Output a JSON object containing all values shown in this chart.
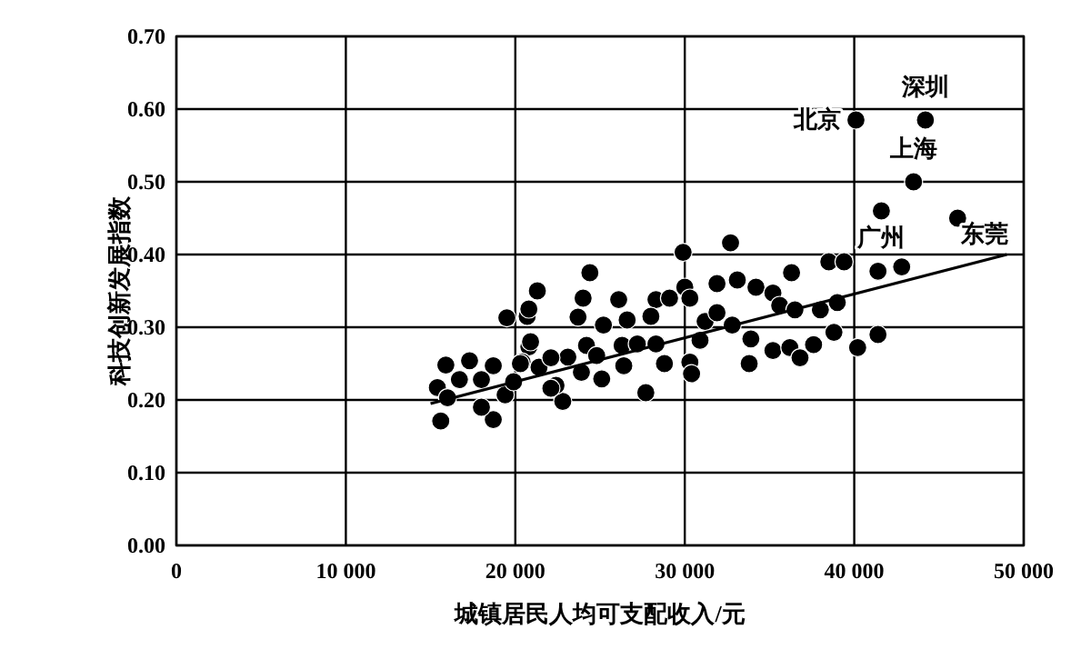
{
  "chart_data": {
    "type": "scatter",
    "xlabel": "城镇居民人均可支配收入/元",
    "ylabel": "科技创新发展指数",
    "xlim": [
      0,
      50000
    ],
    "ylim": [
      0,
      0.7
    ],
    "xticks": [
      0,
      {
        "value": 10000,
        "label": "10 000"
      },
      {
        "value": 20000,
        "label": "20 000"
      },
      {
        "value": 30000,
        "label": "30 000"
      },
      {
        "value": 40000,
        "label": "40 000"
      },
      {
        "value": 50000,
        "label": "50 000"
      }
    ],
    "yticks": [
      {
        "value": 0,
        "label": "0.00"
      },
      {
        "value": 0.1,
        "label": "0.10"
      },
      {
        "value": 0.2,
        "label": "0.20"
      },
      {
        "value": 0.3,
        "label": "0.30"
      },
      {
        "value": 0.4,
        "label": "0.40"
      },
      {
        "value": 0.5,
        "label": "0.50"
      },
      {
        "value": 0.6,
        "label": "0.60"
      },
      {
        "value": 0.7,
        "label": "0.70"
      }
    ],
    "grid": true,
    "marker": "circle",
    "series": [
      {
        "color": "#000000",
        "x": [
          40100,
          44200,
          43500,
          41600,
          46100,
          29900,
          32700,
          24400,
          21300,
          24000,
          26100,
          28300,
          29100,
          30000,
          30300,
          31900,
          33100,
          34200,
          35200,
          36300,
          35600,
          36500,
          38000,
          39000,
          38500,
          39400,
          41400,
          42800,
          20700,
          23700,
          26600,
          28000,
          25200,
          31200,
          31900,
          32800,
          33900,
          35200,
          36200,
          36800,
          37600,
          38800,
          40200,
          41400,
          33800,
          30900,
          30300,
          30400,
          20800,
          24200,
          26300,
          27200,
          28300,
          24800,
          26400,
          28800,
          27700,
          22800,
          20400,
          23100,
          23900,
          25100,
          22400,
          19500,
          20800,
          20900,
          15900,
          17300,
          18700,
          15400,
          16700,
          18000,
          16000,
          15600,
          18700,
          18000,
          19400,
          20300,
          21400,
          22100,
          19900,
          22100
        ],
        "values": [
          0.585,
          0.585,
          0.5,
          0.46,
          0.45,
          0.403,
          0.416,
          0.375,
          0.35,
          0.34,
          0.338,
          0.338,
          0.34,
          0.355,
          0.34,
          0.36,
          0.365,
          0.355,
          0.347,
          0.375,
          0.33,
          0.324,
          0.324,
          0.334,
          0.39,
          0.39,
          0.377,
          0.383,
          0.315,
          0.314,
          0.31,
          0.315,
          0.303,
          0.308,
          0.32,
          0.303,
          0.284,
          0.268,
          0.272,
          0.258,
          0.276,
          0.293,
          0.272,
          0.29,
          0.25,
          0.282,
          0.252,
          0.236,
          0.273,
          0.275,
          0.275,
          0.277,
          0.277,
          0.261,
          0.247,
          0.25,
          0.21,
          0.198,
          0.252,
          0.259,
          0.238,
          0.229,
          0.22,
          0.313,
          0.325,
          0.28,
          0.248,
          0.254,
          0.247,
          0.217,
          0.228,
          0.228,
          0.203,
          0.171,
          0.173,
          0.19,
          0.207,
          0.25,
          0.245,
          0.258,
          0.225,
          0.216
        ]
      },
      {
        "type": "line",
        "marker": "none",
        "color": "#000000",
        "x": [
          15000,
          49000
        ],
        "values": [
          0.195,
          0.4
        ]
      }
    ],
    "annotations": [
      {
        "text": "北京",
        "x": 40100,
        "y": 0.585
      },
      {
        "text": "深圳",
        "x": 44200,
        "y": 0.585
      },
      {
        "text": "上海",
        "x": 43500,
        "y": 0.5
      },
      {
        "text": "广州",
        "x": 41600,
        "y": 0.46
      },
      {
        "text": "东莞",
        "x": 46100,
        "y": 0.45
      }
    ]
  }
}
